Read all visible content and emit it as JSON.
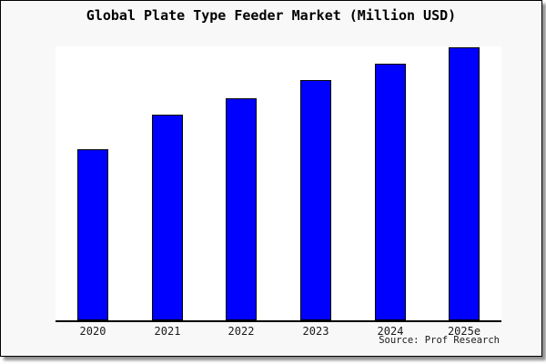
{
  "chart": {
    "title": "Global Plate Type Feeder Market (Million USD)",
    "source": "Source: Prof Research",
    "colors": {
      "bar_fill": "#0000ff",
      "bar_border": "#000000",
      "frame_background": "#f8f8f8",
      "plot_background": "#ffffff",
      "axis_line": "#000000",
      "text": "#000000"
    }
  },
  "chart_data": {
    "type": "bar",
    "title": "Global Plate Type Feeder Market (Million USD)",
    "categories": [
      "2020",
      "2021",
      "2022",
      "2023",
      "2024",
      "2025e"
    ],
    "values": [
      62.8,
      75.3,
      81.5,
      87.9,
      93.9,
      100
    ],
    "values_note": "No value axis shown in chart; values are relative bar heights as percent of tallest bar (2025e = 100)",
    "xlabel": "",
    "ylabel": "",
    "ylim": [
      0,
      100
    ],
    "grid": false,
    "legend": false,
    "value_axis_visible": false,
    "annotation": "Source: Prof Research"
  }
}
